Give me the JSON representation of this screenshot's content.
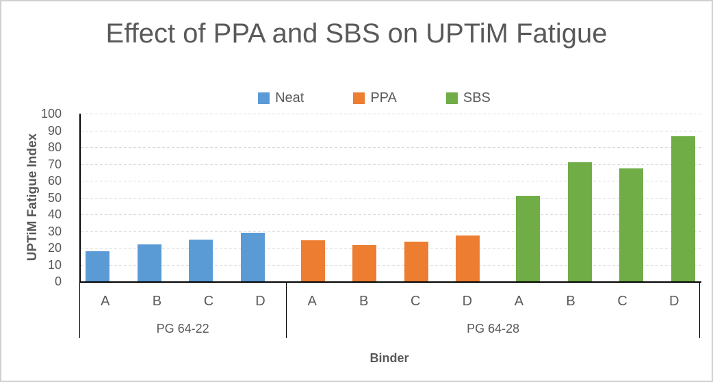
{
  "chart_data": {
    "type": "bar",
    "title": "Effect of PPA and SBS on UPTiM Fatigue",
    "xlabel": "Binder",
    "ylabel": "UPTiM Fatigue Index",
    "ylim": [
      0,
      100
    ],
    "yticks": [
      0,
      10,
      20,
      30,
      40,
      50,
      60,
      70,
      80,
      90,
      100
    ],
    "grid": "horizontal dashed light-gray",
    "legend_position": "top-center",
    "categories": [
      "A",
      "B",
      "C",
      "D",
      "A",
      "B",
      "C",
      "D",
      "A",
      "B",
      "C",
      "D"
    ],
    "category_groups": [
      {
        "label": "PG 64-22",
        "start_slot": 0,
        "end_slot": 3
      },
      {
        "label": "PG 64-28",
        "start_slot": 4,
        "end_slot": 11
      }
    ],
    "separator_slots": [
      0,
      4,
      12
    ],
    "series": [
      {
        "name": "Neat",
        "color": "#5B9BD5",
        "slots": [
          0,
          1,
          2,
          3
        ],
        "values": [
          18,
          22,
          25,
          29
        ]
      },
      {
        "name": "PPA",
        "color": "#ED7D31",
        "slots": [
          4,
          5,
          6,
          7
        ],
        "values": [
          24.5,
          21.5,
          23.5,
          27.5
        ]
      },
      {
        "name": "SBS",
        "color": "#70AD47",
        "slots": [
          8,
          9,
          10,
          11
        ],
        "values": [
          51,
          71,
          67.5,
          86.5
        ]
      }
    ]
  },
  "colors": {
    "text": "#595959",
    "axis": "#000000",
    "gridline": "#d9d9d9",
    "chart_border": "#d0d0d0",
    "background": "#ffffff",
    "series_neat": "#5B9BD5",
    "series_ppa": "#ED7D31",
    "series_sbs": "#70AD47"
  }
}
